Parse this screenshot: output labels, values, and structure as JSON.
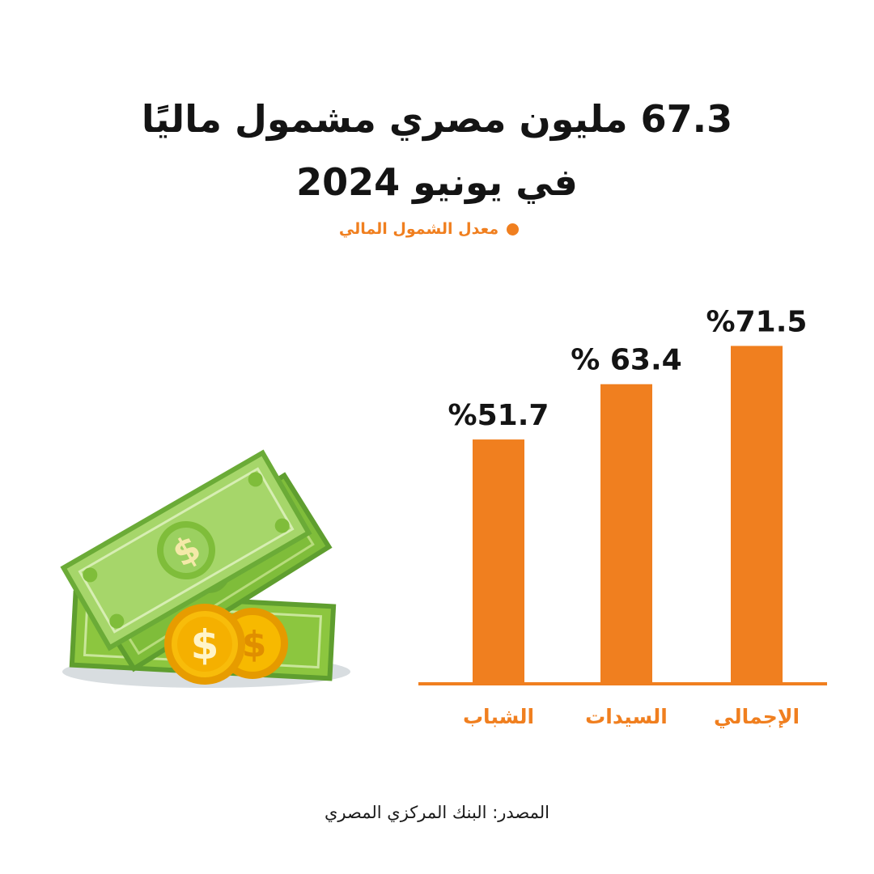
{
  "title": {
    "line1": "67.3 مليون مصري مشمول ماليًا",
    "line2": "في يونيو 2024"
  },
  "legend": {
    "label": "معدل الشمول المالي",
    "color": "#f07f1f"
  },
  "chart_data": {
    "type": "bar",
    "categories": [
      "الشباب",
      "السيدات",
      "الإجمالي"
    ],
    "values": [
      51.7,
      63.4,
      71.5
    ],
    "value_labels": [
      "%51.7",
      "% 63.4",
      "%71.5"
    ],
    "series": [
      {
        "name": "معدل الشمول المالي",
        "values": [
          51.7,
          63.4,
          71.5
        ]
      }
    ],
    "ylabel": "",
    "xlabel": "",
    "grid": false,
    "legend_position": "top",
    "bar_color": "#f07f1f"
  },
  "illustration": {
    "icon": "money-cash-coins-icon",
    "bill_color": "#8cc63f",
    "coin_color": "#f5b800"
  },
  "source": {
    "text": "المصدر: البنك المركزي المصري"
  }
}
